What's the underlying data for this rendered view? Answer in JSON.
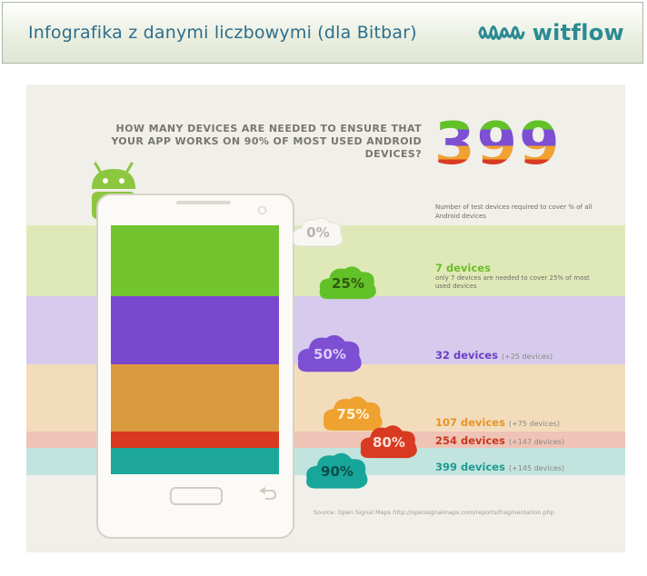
{
  "slide": {
    "title": "Infografika z danymi liczbowymi (dla Bitbar)",
    "brand": "witflow"
  },
  "infographic": {
    "question": "HOW MANY DEVICES ARE NEEDED TO ENSURE THAT YOUR APP WORKS ON 90% OF MOST USED ANDROID DEVICES?",
    "big_number": "399",
    "note": "Number of test devices required to cover % of all Android devices",
    "source": "Source: Open Signal Maps http://opensignalmaps.com/reports/fragmentation.php",
    "levels": [
      {
        "percent": "0%",
        "devices": "",
        "extra": "",
        "description": "",
        "color": "#f4f2ec",
        "band": "#f1efe9"
      },
      {
        "percent": "25%",
        "devices": "7 devices",
        "extra": "",
        "description": "only 7 devices are needed to cover 25% of most used devices",
        "color": "#63c128",
        "band": "#dfe9b8"
      },
      {
        "percent": "50%",
        "devices": "32 devices",
        "extra": "(+25 devices)",
        "description": "",
        "color": "#7d4fd3",
        "band": "#d6cbec"
      },
      {
        "percent": "75%",
        "devices": "107 devices",
        "extra": "(+75 devices)",
        "description": "",
        "color": "#f0a231",
        "band": "#f3dcbc"
      },
      {
        "percent": "80%",
        "devices": "254 devices",
        "extra": "(+147 devices)",
        "description": "",
        "color": "#d93a22",
        "band": "#efc3b6"
      },
      {
        "percent": "90%",
        "devices": "399 devices",
        "extra": "(+145 devices)",
        "description": "",
        "color": "#18a69b",
        "band": "#c2e4df"
      }
    ],
    "colors": {
      "green_label": "#6cbd2a",
      "purple_label": "#6c3fc4",
      "orange_label": "#e79427",
      "red_label": "#c9371f",
      "teal_label": "#1c9c92"
    }
  }
}
